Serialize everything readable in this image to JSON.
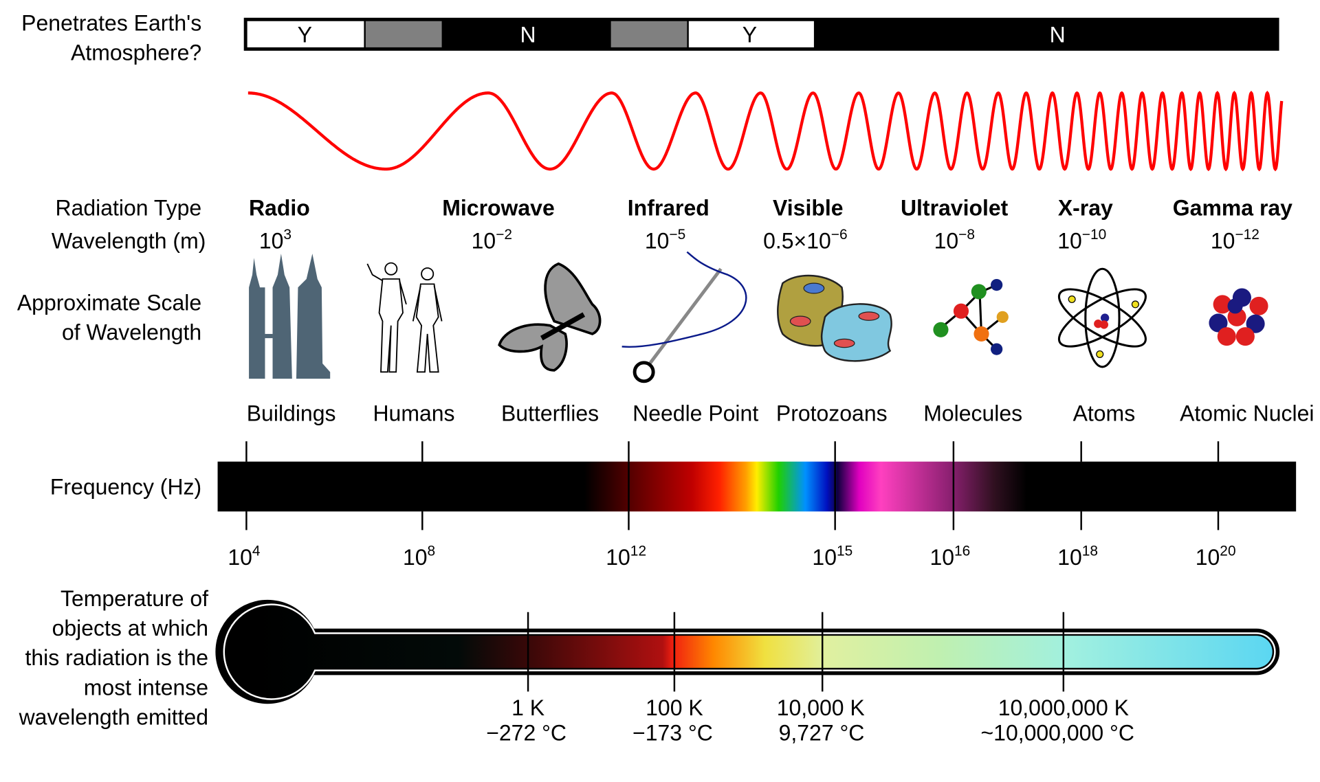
{
  "atmosphere": {
    "label_line1": "Penetrates Earth's",
    "label_line2": "Atmosphere?",
    "segments": [
      {
        "label": "Y",
        "state": "yes",
        "color": "#ffffff"
      },
      {
        "label": "",
        "state": "partial",
        "color": "#808080"
      },
      {
        "label": "N",
        "state": "no",
        "color": "#000000"
      },
      {
        "label": "",
        "state": "partial",
        "color": "#808080"
      },
      {
        "label": "Y",
        "state": "yes",
        "color": "#ffffff"
      },
      {
        "label": "N",
        "state": "no",
        "color": "#000000"
      }
    ]
  },
  "wave_color": "#ff0000",
  "row_labels": {
    "radiation_type": "Radiation Type",
    "wavelength": "Wavelength (m)",
    "scale_line1": "Approximate Scale",
    "scale_line2": "of Wavelength",
    "frequency": "Frequency (Hz)",
    "temperature_lines": [
      "Temperature of",
      "objects at which",
      "this radiation is the",
      "most intense",
      "wavelength emitted"
    ]
  },
  "radiation_types": [
    {
      "name": "Radio",
      "wavelength_base": "10",
      "wavelength_exp": "3"
    },
    {
      "name": "Microwave",
      "wavelength_base": "10",
      "wavelength_exp": "−2"
    },
    {
      "name": "Infrared",
      "wavelength_base": "10",
      "wavelength_exp": "−5"
    },
    {
      "name": "Visible",
      "wavelength_base": "0.5×10",
      "wavelength_exp": "−6"
    },
    {
      "name": "Ultraviolet",
      "wavelength_base": "10",
      "wavelength_exp": "−8"
    },
    {
      "name": "X-ray",
      "wavelength_base": "10",
      "wavelength_exp": "−10"
    },
    {
      "name": "Gamma ray",
      "wavelength_base": "10",
      "wavelength_exp": "−12"
    }
  ],
  "scale_objects": [
    {
      "label": "Buildings",
      "icon": "buildings-icon"
    },
    {
      "label": "Humans",
      "icon": "humans-icon"
    },
    {
      "label": "Butterflies",
      "icon": "butterfly-icon"
    },
    {
      "label": "Needle Point",
      "icon": "needle-icon"
    },
    {
      "label": "Protozoans",
      "icon": "protozoan-icon"
    },
    {
      "label": "Molecules",
      "icon": "molecule-icon"
    },
    {
      "label": "Atoms",
      "icon": "atom-icon"
    },
    {
      "label": "Atomic Nuclei",
      "icon": "nucleus-icon"
    }
  ],
  "frequency_ticks": [
    {
      "base": "10",
      "exp": "4"
    },
    {
      "base": "10",
      "exp": "8"
    },
    {
      "base": "10",
      "exp": "12"
    },
    {
      "base": "10",
      "exp": "15"
    },
    {
      "base": "10",
      "exp": "16"
    },
    {
      "base": "10",
      "exp": "18"
    },
    {
      "base": "10",
      "exp": "20"
    }
  ],
  "temperature_ticks": [
    {
      "kelvin": "1 K",
      "celsius": "−272 °C"
    },
    {
      "kelvin": "100 K",
      "celsius": "−173 °C"
    },
    {
      "kelvin": "10,000 K",
      "celsius": "9,727 °C"
    },
    {
      "kelvin": "10,000,000 K",
      "celsius": "~10,000,000 °C"
    }
  ]
}
